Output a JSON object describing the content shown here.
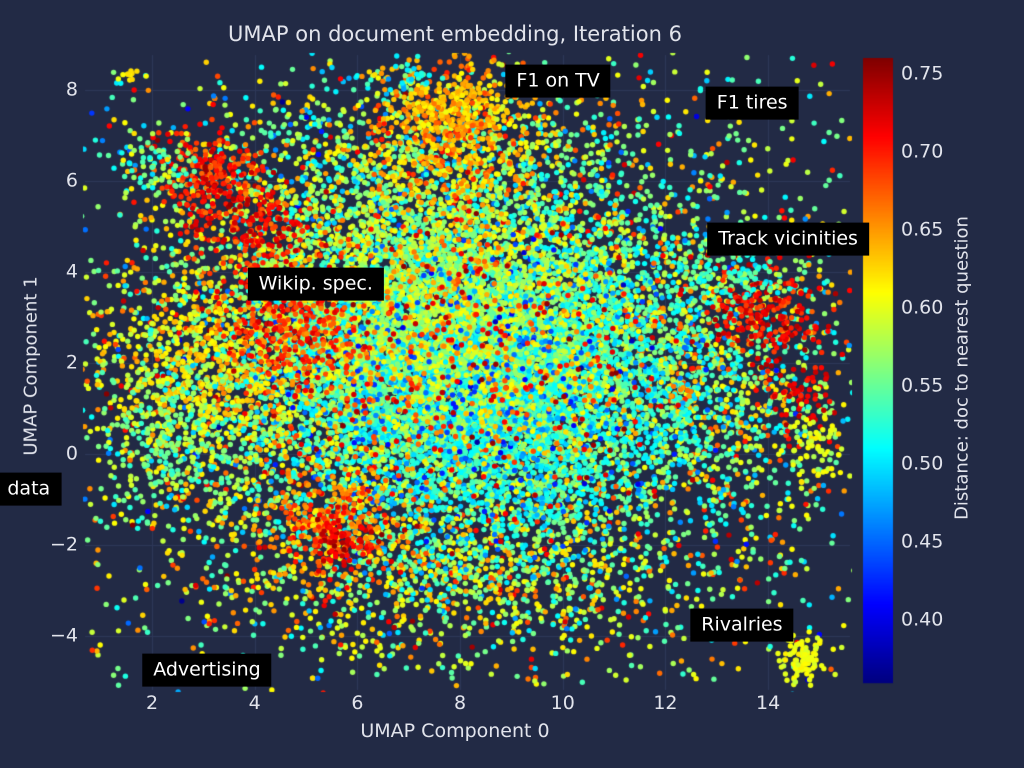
{
  "colors": {
    "background": "#222a45",
    "grid": "#2e3858",
    "text": "#e2e4ec",
    "annotation_bg": "#000000",
    "annotation_text": "#ffffff"
  },
  "chart_data": {
    "type": "scatter",
    "title": "UMAP on document embedding, Iteration 6",
    "xlabel": "UMAP Component 0",
    "ylabel": "UMAP Component 1",
    "grid": true,
    "xlim": [
      0.695,
      15.595
    ],
    "ylim": [
      -5.19,
      8.78
    ],
    "xticks": [
      {
        "v": 2,
        "label": "2"
      },
      {
        "v": 4,
        "label": "4"
      },
      {
        "v": 6,
        "label": "6"
      },
      {
        "v": 8,
        "label": "8"
      },
      {
        "v": 10,
        "label": "10"
      },
      {
        "v": 12,
        "label": "12"
      },
      {
        "v": 14,
        "label": "14"
      }
    ],
    "yticks": [
      {
        "v": 8,
        "label": "8"
      },
      {
        "v": 6,
        "label": "6"
      },
      {
        "v": 4,
        "label": "4"
      },
      {
        "v": 2,
        "label": "2"
      },
      {
        "v": 0,
        "label": "0"
      },
      {
        "v": -2,
        "label": "−2"
      },
      {
        "v": -4,
        "label": "−4"
      }
    ],
    "colorbar": {
      "label": "Distance: doc to nearest question",
      "colormap": "jet",
      "vmin": 0.36,
      "vmax": 0.76,
      "ticks": [
        {
          "v": 0.4,
          "label": "0.40"
        },
        {
          "v": 0.45,
          "label": "0.45"
        },
        {
          "v": 0.5,
          "label": "0.50"
        },
        {
          "v": 0.55,
          "label": "0.55"
        },
        {
          "v": 0.6,
          "label": "0.60"
        },
        {
          "v": 0.65,
          "label": "0.65"
        },
        {
          "v": 0.7,
          "label": "0.70"
        },
        {
          "v": 0.75,
          "label": "0.75"
        }
      ]
    },
    "annotations": [
      {
        "label": "F1 on TV",
        "x": 9.91,
        "y": 8.21
      },
      {
        "label": "F1 tires",
        "x": 13.69,
        "y": 7.72
      },
      {
        "label": "Track vicinities",
        "x": 14.39,
        "y": 4.73
      },
      {
        "label": "Wikip. spec.",
        "x": 5.19,
        "y": 3.74
      },
      {
        "label": "data",
        "x": -0.4,
        "y": -0.77
      },
      {
        "label": "Rivalries",
        "x": 13.49,
        "y": -3.76
      },
      {
        "label": "Advertising",
        "x": 3.07,
        "y": -4.75
      }
    ],
    "clusters": [
      {
        "name": "outer-halo",
        "cx": 8.2,
        "cy": 1.8,
        "sx": 3.6,
        "sy": 3.0,
        "n": 1900,
        "v": 0.58,
        "vs": 0.06
      },
      {
        "name": "bottom-band",
        "cx": 8.0,
        "cy": -2.6,
        "sx": 2.3,
        "sy": 1.0,
        "n": 900,
        "v": 0.595,
        "vs": 0.05
      },
      {
        "name": "top-band",
        "cx": 7.3,
        "cy": 6.5,
        "sx": 2.4,
        "sy": 0.9,
        "n": 650,
        "v": 0.57,
        "vs": 0.055
      },
      {
        "name": "left-halo",
        "cx": 3.4,
        "cy": 1.6,
        "sx": 1.3,
        "sy": 2.2,
        "n": 800,
        "v": 0.6,
        "vs": 0.055
      },
      {
        "name": "right-halo",
        "cx": 13.0,
        "cy": 1.8,
        "sx": 1.2,
        "sy": 2.0,
        "n": 650,
        "v": 0.585,
        "vs": 0.06
      },
      {
        "name": "sparse-noise",
        "uniform": true,
        "x0": 0.8,
        "x1": 15.5,
        "y0": -5.1,
        "y1": 8.6,
        "n": 700,
        "v": 0.58,
        "vs": 0.08
      },
      {
        "name": "core-green",
        "cx": 8.3,
        "cy": 2.2,
        "sx": 2.4,
        "sy": 2.0,
        "n": 6000,
        "v": 0.545,
        "vs": 0.035
      },
      {
        "name": "core-teal",
        "cx": 8.5,
        "cy": 1.6,
        "sx": 1.9,
        "sy": 1.6,
        "n": 2600,
        "v": 0.515,
        "vs": 0.018
      },
      {
        "name": "core-yellowgreen",
        "cx": 7.4,
        "cy": 3.0,
        "sx": 2.1,
        "sy": 1.7,
        "n": 2600,
        "v": 0.585,
        "vs": 0.022
      },
      {
        "name": "core-blue-sprinkle",
        "cx": 8.3,
        "cy": 1.2,
        "sx": 2.2,
        "sy": 1.8,
        "n": 550,
        "v": 0.455,
        "vs": 0.03
      },
      {
        "name": "core-orange-sprinkle",
        "cx": 7.9,
        "cy": 2.4,
        "sx": 2.7,
        "sy": 2.2,
        "n": 650,
        "v": 0.655,
        "vs": 0.03
      },
      {
        "name": "core-red-sprinkle",
        "cx": 8.0,
        "cy": 2.0,
        "sx": 3.0,
        "sy": 2.4,
        "n": 260,
        "v": 0.72,
        "vs": 0.02
      },
      {
        "name": "f1-tv-orange",
        "cx": 7.85,
        "cy": 7.1,
        "sx": 0.8,
        "sy": 0.75,
        "n": 450,
        "v": 0.645,
        "vs": 0.025
      },
      {
        "name": "f1-tv-core",
        "cx": 7.9,
        "cy": 7.7,
        "sx": 0.4,
        "sy": 0.35,
        "n": 140,
        "v": 0.635,
        "vs": 0.02
      },
      {
        "name": "topleft-red-a",
        "cx": 3.1,
        "cy": 6.1,
        "sx": 0.55,
        "sy": 0.5,
        "n": 200,
        "v": 0.7,
        "vs": 0.02
      },
      {
        "name": "topleft-red-b",
        "cx": 4.0,
        "cy": 5.0,
        "sx": 0.5,
        "sy": 0.45,
        "n": 140,
        "v": 0.71,
        "vs": 0.02
      },
      {
        "name": "topleft-teal",
        "cx": 2.1,
        "cy": 6.4,
        "sx": 0.45,
        "sy": 0.35,
        "n": 70,
        "v": 0.55,
        "vs": 0.03
      },
      {
        "name": "left-yellow",
        "cx": 2.9,
        "cy": 1.8,
        "sx": 0.95,
        "sy": 0.9,
        "n": 360,
        "v": 0.615,
        "vs": 0.02
      },
      {
        "name": "left-orange-red",
        "cx": 4.7,
        "cy": 2.7,
        "sx": 0.7,
        "sy": 0.8,
        "n": 330,
        "v": 0.69,
        "vs": 0.025
      },
      {
        "name": "left-green",
        "cx": 2.3,
        "cy": 0.4,
        "sx": 0.8,
        "sy": 0.95,
        "n": 260,
        "v": 0.555,
        "vs": 0.03
      },
      {
        "name": "bottomleft-orange",
        "cx": 5.5,
        "cy": -1.5,
        "sx": 0.75,
        "sy": 0.7,
        "n": 300,
        "v": 0.665,
        "vs": 0.03
      },
      {
        "name": "bottomleft-red",
        "cx": 5.7,
        "cy": -1.9,
        "sx": 0.32,
        "sy": 0.3,
        "n": 80,
        "v": 0.72,
        "vs": 0.015
      },
      {
        "name": "right-red-a",
        "cx": 13.95,
        "cy": 3.1,
        "sx": 0.6,
        "sy": 0.55,
        "n": 200,
        "v": 0.71,
        "vs": 0.02
      },
      {
        "name": "right-red-b",
        "cx": 14.75,
        "cy": 1.3,
        "sx": 0.3,
        "sy": 0.4,
        "n": 60,
        "v": 0.72,
        "vs": 0.015
      },
      {
        "name": "right-teal",
        "cx": 13.5,
        "cy": 4.0,
        "sx": 0.35,
        "sy": 0.3,
        "n": 60,
        "v": 0.53,
        "vs": 0.02
      },
      {
        "name": "right-yellow",
        "cx": 14.85,
        "cy": 0.2,
        "sx": 0.3,
        "sy": 0.5,
        "n": 70,
        "v": 0.6,
        "vs": 0.015
      },
      {
        "name": "bottomright-yellow",
        "cx": 14.65,
        "cy": -4.5,
        "sx": 0.2,
        "sy": 0.28,
        "n": 90,
        "v": 0.605,
        "vs": 0.008
      },
      {
        "name": "topleft-tiny-yellow",
        "cx": 1.6,
        "cy": 8.35,
        "sx": 0.15,
        "sy": 0.12,
        "n": 12,
        "v": 0.615,
        "vs": 0.005
      },
      {
        "name": "top-tiny-teal",
        "cx": 7.0,
        "cy": 8.3,
        "sx": 0.3,
        "sy": 0.15,
        "n": 25,
        "v": 0.52,
        "vs": 0.02
      }
    ]
  }
}
